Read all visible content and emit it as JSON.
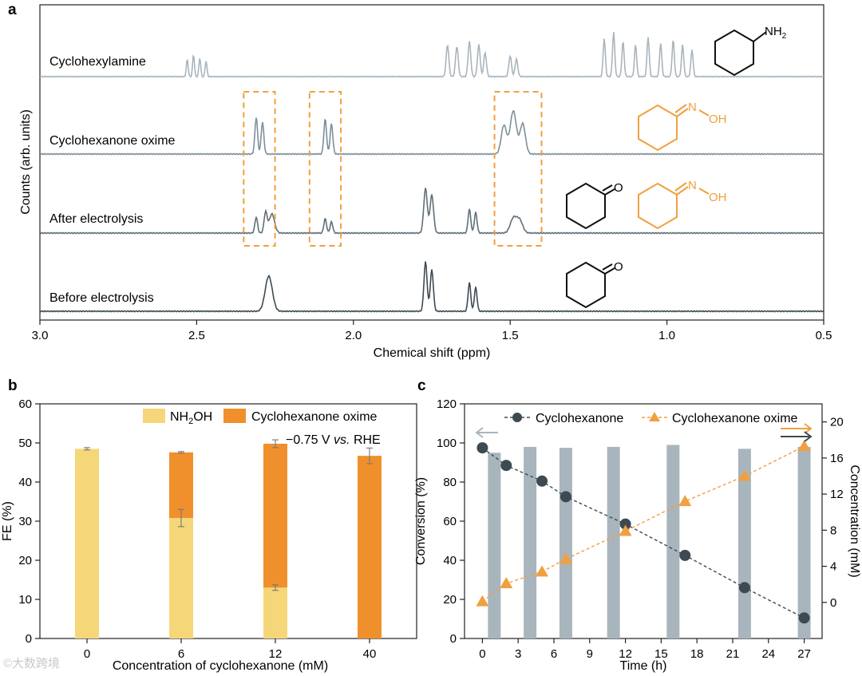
{
  "panel_labels": {
    "a": "a",
    "b": "b",
    "c": "c"
  },
  "colors": {
    "trace_light": "#a9b5bd",
    "trace_mid": "#7e8f9a",
    "trace_dark": "#5f6f78",
    "trace_darkest": "#3e4a52",
    "orange": "#f0a040",
    "box": "#f0a040",
    "nh2oh": "#f5d77a",
    "oxime": "#f0902c",
    "bar_c": "#a9b5bd",
    "ketone": "#3e4a52"
  },
  "chart_data": [
    {
      "id": "a",
      "type": "line",
      "title": "",
      "xlabel": "Chemical shift (ppm)",
      "ylabel": "Counts (arb. units)",
      "xlim": [
        3.0,
        0.5
      ],
      "x_ticks": [
        "3.0",
        "2.5",
        "2.0",
        "1.5",
        "1.0",
        "0.5"
      ],
      "x_tick_values": [
        3.0,
        2.5,
        2.0,
        1.5,
        1.0,
        0.5
      ],
      "series": [
        {
          "name": "Cyclohexylamine",
          "label": "Cyclohexylamine",
          "peaks_ppm": [
            2.53,
            2.51,
            2.49,
            2.47,
            1.7,
            1.67,
            1.63,
            1.6,
            1.58,
            1.5,
            1.48,
            1.2,
            1.17,
            1.14,
            1.1,
            1.06,
            1.02,
            0.98,
            0.95,
            0.92
          ]
        },
        {
          "name": "Cyclohexanone oxime",
          "label": "Cyclohexanone oxime",
          "peaks_ppm": [
            2.31,
            2.29,
            2.09,
            2.07,
            1.52,
            1.49,
            1.46
          ]
        },
        {
          "name": "After electrolysis",
          "label": "After electrolysis",
          "peaks_ppm": [
            2.31,
            2.28,
            2.26,
            2.09,
            2.07,
            1.77,
            1.75,
            1.63,
            1.61,
            1.49,
            1.47
          ]
        },
        {
          "name": "Before electrolysis",
          "label": "Before electrolysis",
          "peaks_ppm": [
            2.27,
            1.77,
            1.75,
            1.63,
            1.61
          ]
        }
      ],
      "highlight_ranges_ppm": [
        [
          2.35,
          2.25
        ],
        [
          2.14,
          2.04
        ],
        [
          1.55,
          1.4
        ]
      ],
      "structure_labels": {
        "amine": "NH",
        "amine_sub": "2",
        "oxime_n": "N",
        "oxime_oh": "OH",
        "ketone_o": "O"
      }
    },
    {
      "id": "b",
      "type": "bar",
      "title": "",
      "xlabel": "Concentration of cyclohexanone (mM)",
      "ylabel": "FE (%)",
      "ylim": [
        0,
        60
      ],
      "y_ticks": [
        0,
        10,
        20,
        30,
        40,
        50,
        60
      ],
      "categories": [
        "0",
        "6",
        "12",
        "40"
      ],
      "series": [
        {
          "name": "NH2OH",
          "values": [
            48.5,
            30.8,
            13.0,
            0
          ]
        },
        {
          "name": "Cyclohexanone oxime",
          "values": [
            0,
            16.8,
            36.8,
            46.7
          ]
        }
      ],
      "errors": {
        "nh2oh": [
          0.3,
          2.2,
          0.7,
          0
        ],
        "total": [
          0.3,
          0.2,
          1.0,
          2.0
        ]
      },
      "legend": {
        "nh2oh_base": "NH",
        "nh2oh_sub": "2",
        "nh2oh_tail": "OH",
        "oxime": "Cyclohexanone oxime"
      },
      "annotation": {
        "potential": "−0.75 V ",
        "vs": "vs.",
        "ref": " RHE"
      },
      "legend_position": "top-right"
    },
    {
      "id": "c",
      "type": "line",
      "title": "",
      "xlabel": "Time (h)",
      "ylabel": "Conversion (%)",
      "y2label": "Concentration (mM)",
      "xlim": [
        -1.5,
        28.5
      ],
      "ylim": [
        0,
        120
      ],
      "y2lim": [
        -4,
        22
      ],
      "x_ticks": [
        0,
        3,
        6,
        9,
        12,
        15,
        18,
        21,
        24,
        27
      ],
      "y_ticks": [
        0,
        20,
        40,
        60,
        80,
        100,
        120
      ],
      "y2_ticks": [
        0,
        4,
        8,
        12,
        16,
        20
      ],
      "bars": {
        "x": [
          1.0,
          4.0,
          7.0,
          11.0,
          16.0,
          22.0,
          27.0
        ],
        "values": [
          95,
          98,
          97.5,
          98,
          99,
          97,
          98
        ]
      },
      "series": [
        {
          "name": "Cyclohexanone",
          "axis": "left",
          "x": [
            0,
            2,
            5,
            7,
            12,
            17,
            22,
            27
          ],
          "values": [
            97.5,
            88.5,
            80.5,
            72.5,
            58.5,
            42.5,
            26.0,
            10.5
          ]
        },
        {
          "name": "Cyclohexanone oxime",
          "axis": "right",
          "x": [
            0,
            2,
            5,
            7,
            12,
            17,
            22,
            27
          ],
          "values": [
            0.1,
            2.1,
            3.4,
            4.8,
            7.9,
            11.2,
            14.0,
            17.3
          ]
        }
      ],
      "legend": [
        "Cyclohexanone",
        "Cyclohexanone oxime"
      ],
      "legend_position": "top"
    }
  ],
  "watermark": "©大数跨境"
}
